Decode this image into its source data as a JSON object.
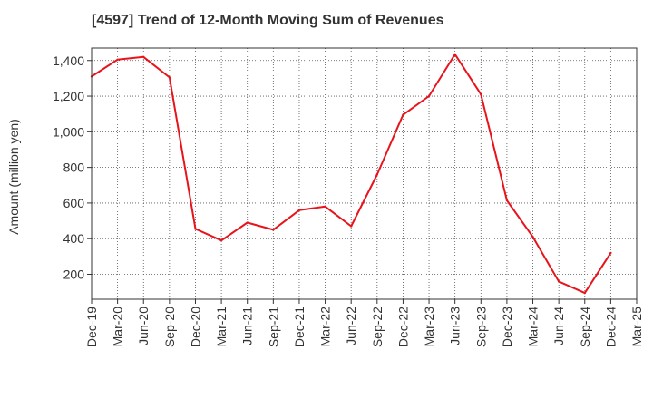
{
  "chart_data": {
    "type": "line",
    "title": "[4597]  Trend of 12-Month Moving Sum of Revenues",
    "xlabel": "",
    "ylabel": "Amount (million yen)",
    "x": [
      "Dec-19",
      "Mar-20",
      "Jun-20",
      "Sep-20",
      "Dec-20",
      "Mar-21",
      "Jun-21",
      "Sep-21",
      "Dec-21",
      "Mar-22",
      "Jun-22",
      "Sep-22",
      "Dec-22",
      "Mar-23",
      "Jun-23",
      "Sep-23",
      "Dec-23",
      "Mar-24",
      "Jun-24",
      "Sep-24",
      "Dec-24",
      "Mar-25"
    ],
    "y_ticks": [
      200,
      400,
      600,
      800,
      1000,
      1200,
      1400
    ],
    "y_tick_labels": [
      "200",
      "400",
      "600",
      "800",
      "1,000",
      "1,200",
      "1,400"
    ],
    "ylim": [
      60,
      1470
    ],
    "grid": true,
    "series": [
      {
        "color": "#e8141b",
        "values": [
          1310,
          1405,
          1420,
          1305,
          455,
          390,
          490,
          450,
          560,
          580,
          470,
          760,
          1095,
          1200,
          1435,
          1210,
          615,
          410,
          160,
          95,
          320,
          null
        ]
      }
    ]
  }
}
